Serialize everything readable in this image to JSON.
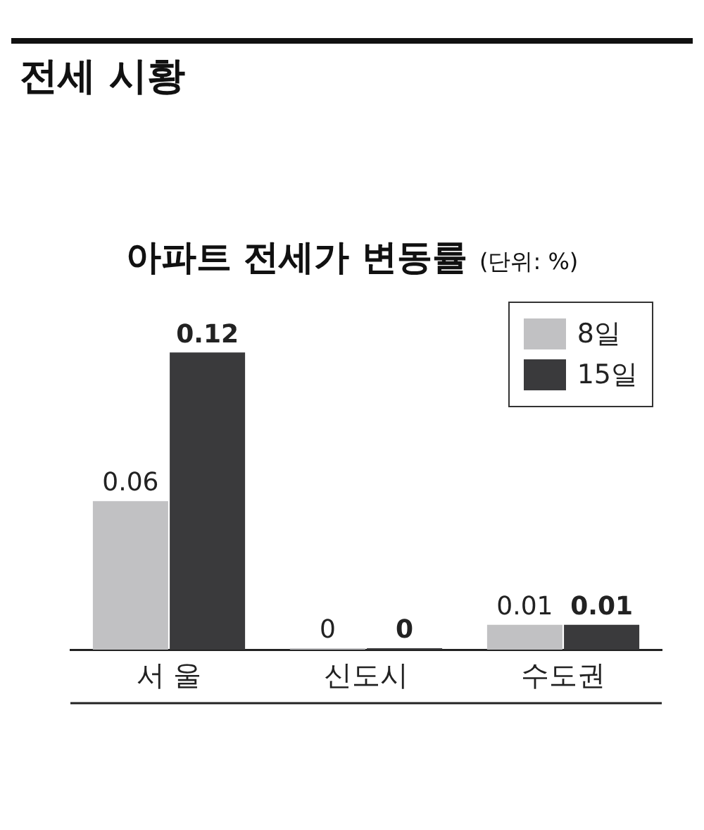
{
  "chart_data": {
    "type": "bar",
    "title": "전세 시황",
    "subtitle": "아파트 전세가 변동률",
    "annotations": [
      "(단위: %)"
    ],
    "categories": [
      "서 울",
      "신도시",
      "수도권"
    ],
    "series": [
      {
        "name": "8일",
        "color": "#c1c1c3",
        "values": [
          0.06,
          0,
          0.01
        ]
      },
      {
        "name": "15일",
        "color": "#3a3a3c",
        "values": [
          0.12,
          0,
          0.01
        ]
      }
    ],
    "data_labels": true,
    "legend": "top right",
    "grid": false
  }
}
